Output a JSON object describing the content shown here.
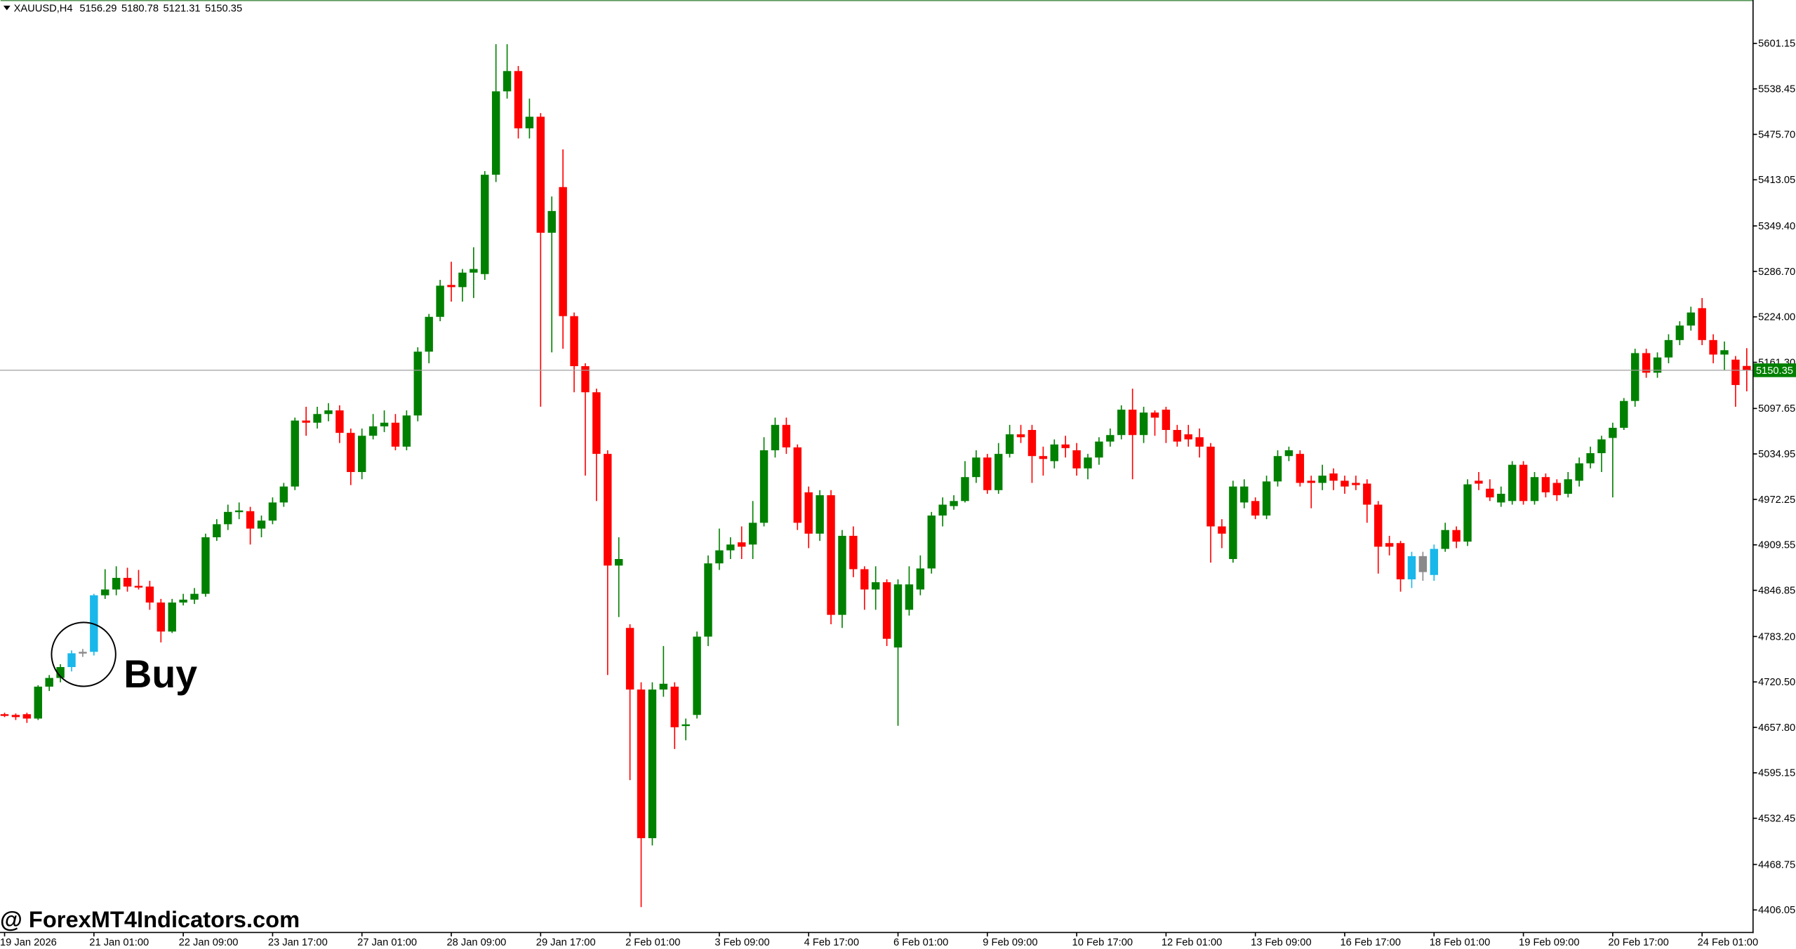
{
  "chart_data": {
    "type": "candlestick",
    "title": "XAUUSD,H4",
    "header_values": [
      5156.29,
      5180.78,
      5121.31,
      5150.35
    ],
    "categories": [
      "19 Jan 2026",
      null,
      null,
      null,
      null,
      null,
      null,
      null,
      "21 Jan 01:00",
      null,
      null,
      null,
      null,
      null,
      null,
      null,
      "22 Jan 09:00",
      null,
      null,
      null,
      null,
      null,
      null,
      null,
      "23 Jan 17:00",
      null,
      null,
      null,
      null,
      null,
      null,
      null,
      "27 Jan 01:00",
      null,
      null,
      null,
      null,
      null,
      null,
      null,
      "28 Jan 09:00",
      null,
      null,
      null,
      null,
      null,
      null,
      null,
      "29 Jan 17:00",
      null,
      null,
      null,
      null,
      null,
      null,
      null,
      "2 Feb 01:00",
      null,
      null,
      null,
      null,
      null,
      null,
      null,
      "3 Feb 09:00",
      null,
      null,
      null,
      null,
      null,
      null,
      null,
      "4 Feb 17:00",
      null,
      null,
      null,
      null,
      null,
      null,
      null,
      "6 Feb 01:00",
      null,
      null,
      null,
      null,
      null,
      null,
      null,
      "9 Feb 09:00",
      null,
      null,
      null,
      null,
      null,
      null,
      null,
      "10 Feb 17:00",
      null,
      null,
      null,
      null,
      null,
      null,
      null,
      "12 Feb 01:00",
      null,
      null,
      null,
      null,
      null,
      null,
      null,
      "13 Feb 09:00",
      null,
      null,
      null,
      null,
      null,
      null,
      null,
      "16 Feb 17:00",
      null,
      null,
      null,
      null,
      null,
      null,
      null,
      "18 Feb 01:00",
      null,
      null,
      null,
      null,
      null,
      null,
      null,
      "19 Feb 09:00",
      null,
      null,
      null,
      null,
      null,
      null,
      null,
      "20 Feb 17:00",
      null,
      null,
      null,
      null,
      null,
      null,
      null,
      "24 Feb 01:00",
      null,
      null,
      null,
      null
    ],
    "open": [
      4676,
      4675,
      4676,
      4670,
      4714,
      4726,
      4741,
      4760,
      4762,
      4840,
      4848,
      4864,
      4853,
      4852,
      4830,
      4790,
      4830,
      4834,
      4842,
      4920,
      4938,
      4955,
      4956,
      4932,
      4943,
      4968,
      4990,
      5081,
      5078,
      5090,
      5095,
      5064,
      5010,
      5060,
      5073,
      5078,
      5045,
      5088,
      5176,
      5224,
      5268,
      5265,
      5285,
      5283,
      5420,
      5535,
      5563,
      5484,
      5500,
      5340,
      5403,
      5225,
      5156,
      5120,
      5035,
      4881,
      4795,
      4710,
      4505,
      4710,
      4714,
      4660,
      4675,
      4783,
      4884,
      4902,
      4913,
      4910,
      4940,
      5040,
      5075,
      5044,
      4982,
      4925,
      4978,
      4813,
      4922,
      4876,
      4848,
      4858,
      4768,
      4820,
      4848,
      4877,
      4950,
      4963,
      4970,
      5003,
      5030,
      4985,
      5035,
      5062,
      5068,
      5032,
      5025,
      5048,
      5040,
      5015,
      5030,
      5052,
      5061,
      5096,
      5061,
      5092,
      5096,
      5068,
      5062,
      5058,
      5045,
      4935,
      4890,
      4968,
      4970,
      4950,
      4997,
      5032,
      5035,
      4998,
      4995,
      5008,
      4998,
      4995,
      4994,
      4965,
      4912,
      4912,
      4862,
      4894,
      4868,
      4904,
      4930,
      4914,
      4998,
      4987,
      4968,
      4970,
      5020,
      4970,
      5003,
      4995,
      4980,
      4998,
      5022,
      5036,
      5057,
      5071,
      5108,
      5174,
      5147,
      5168,
      5192,
      5212,
      5236,
      5192,
      5172,
      5165,
      5156.29
    ],
    "high": [
      4678,
      4677,
      4678,
      4716,
      4730,
      4745,
      4764,
      4766,
      4842,
      4876,
      4880,
      4878,
      4875,
      4860,
      4835,
      4835,
      4842,
      4850,
      4925,
      4945,
      4965,
      4968,
      4962,
      4950,
      4975,
      4995,
      5085,
      5100,
      5100,
      5105,
      5102,
      5070,
      5070,
      5090,
      5095,
      5090,
      5095,
      5182,
      5228,
      5275,
      5300,
      5290,
      5320,
      5425,
      5600,
      5600,
      5570,
      5525,
      5505,
      5390,
      5455,
      5230,
      5160,
      5125,
      5040,
      4920,
      4800,
      4720,
      4720,
      4770,
      4720,
      4670,
      4790,
      4895,
      4932,
      4920,
      4935,
      4970,
      5058,
      5085,
      5085,
      5048,
      4990,
      4985,
      4985,
      4930,
      4935,
      4880,
      4880,
      4862,
      4862,
      4880,
      4895,
      4955,
      4975,
      4978,
      5025,
      5040,
      5035,
      5050,
      5075,
      5075,
      5075,
      5045,
      5055,
      5060,
      5050,
      5035,
      5058,
      5070,
      5102,
      5125,
      5100,
      5095,
      5100,
      5075,
      5075,
      5070,
      5050,
      4945,
      4998,
      5000,
      4975,
      5005,
      5040,
      5045,
      5040,
      5005,
      5020,
      5015,
      5005,
      5005,
      5000,
      4970,
      4922,
      4915,
      4900,
      4900,
      4910,
      4940,
      4935,
      5000,
      5010,
      5000,
      4990,
      5025,
      5025,
      5010,
      5008,
      5000,
      5010,
      5030,
      5045,
      5060,
      5078,
      5112,
      5180,
      5180,
      5175,
      5200,
      5218,
      5238,
      5250,
      5200,
      5190,
      5170,
      5180.78
    ],
    "low": [
      4672,
      4668,
      4664,
      4668,
      4708,
      4720,
      4735,
      4755,
      4757,
      4835,
      4840,
      4845,
      4848,
      4820,
      4775,
      4788,
      4826,
      4828,
      4838,
      4915,
      4930,
      4945,
      4910,
      4920,
      4938,
      4962,
      4985,
      5060,
      5070,
      5080,
      5050,
      4992,
      5000,
      5055,
      5065,
      5040,
      5040,
      5080,
      5160,
      5218,
      5245,
      5245,
      5250,
      5275,
      5410,
      5525,
      5470,
      5470,
      5100,
      5175,
      5180,
      5120,
      5005,
      4970,
      4730,
      4810,
      4585,
      4410,
      4495,
      4700,
      4628,
      4640,
      4670,
      4770,
      4875,
      4890,
      4890,
      4890,
      4935,
      5030,
      5035,
      4930,
      4905,
      4915,
      4800,
      4795,
      4865,
      4820,
      4820,
      4770,
      4660,
      4812,
      4840,
      4870,
      4935,
      4958,
      4968,
      4995,
      4980,
      4980,
      5030,
      5050,
      4995,
      5005,
      5015,
      5030,
      5005,
      5000,
      5020,
      5045,
      5055,
      5000,
      5050,
      5060,
      5050,
      5045,
      5045,
      5030,
      4885,
      4905,
      4885,
      4960,
      4945,
      4945,
      4990,
      5025,
      4990,
      4960,
      4985,
      4985,
      4980,
      4985,
      4940,
      4870,
      4895,
      4845,
      4850,
      4860,
      4860,
      4900,
      4905,
      4908,
      4985,
      4970,
      4962,
      4965,
      4965,
      4965,
      4975,
      4970,
      4975,
      4990,
      5015,
      5010,
      4975,
      5068,
      5100,
      5140,
      5140,
      5160,
      5185,
      5205,
      5185,
      5160,
      5150,
      5100,
      5121.31
    ],
    "close": [
      4674,
      4672,
      4670,
      4714,
      4726,
      4741,
      4760,
      4762,
      4840,
      4848,
      4864,
      4852,
      4851,
      4830,
      4790,
      4830,
      4834,
      4842,
      4920,
      4938,
      4955,
      4957,
      4932,
      4943,
      4968,
      4990,
      5081,
      5078,
      5090,
      5095,
      5064,
      5010,
      5060,
      5073,
      5078,
      5045,
      5088,
      5176,
      5224,
      5267,
      5265,
      5285,
      5290,
      5420,
      5535,
      5563,
      5484,
      5500,
      5340,
      5370,
      5225,
      5156,
      5120,
      5035,
      4881,
      4890,
      4710,
      4505,
      4710,
      4718,
      4658,
      4662,
      4783,
      4884,
      4902,
      4910,
      4907,
      4940,
      5040,
      5075,
      5044,
      4940,
      4925,
      4978,
      4813,
      4922,
      4876,
      4848,
      4858,
      4780,
      4855,
      4855,
      4877,
      4950,
      4965,
      4970,
      5003,
      5030,
      4985,
      5035,
      5062,
      5058,
      5032,
      5028,
      5048,
      5043,
      5015,
      5030,
      5052,
      5061,
      5096,
      5061,
      5092,
      5085,
      5068,
      5052,
      5055,
      5045,
      4935,
      4925,
      4990,
      4990,
      4950,
      4997,
      5032,
      5040,
      4995,
      4995,
      5005,
      4998,
      4990,
      4992,
      4965,
      4907,
      4907,
      4862,
      4894,
      4872,
      4904,
      4930,
      4914,
      4993,
      4994,
      4975,
      4980,
      5020,
      4970,
      5003,
      4982,
      4978,
      5000,
      5022,
      5036,
      5055,
      5071,
      5108,
      5174,
      5147,
      5168,
      5192,
      5212,
      5230,
      5192,
      5172,
      5178,
      5130,
      5150.35
    ],
    "up_color": "#008000",
    "down_color": "#ff0000",
    "signal_color": "#1ab7ea",
    "neutral_color": "#8a8a8a",
    "signal_candles": [
      6,
      8,
      126,
      128
    ],
    "neutral_candles": [
      7,
      127
    ],
    "last_price": 5150.35,
    "ylim": [
      4375,
      5661
    ],
    "yticks": [
      5601.15,
      5538.45,
      {
        "value": 5475.7,
        "label": "5475.70"
      },
      5413.05,
      {
        "value": 5349.4,
        "label": "5349.40"
      },
      {
        "value": 5286.7,
        "label": "5286.70"
      },
      {
        "value": 5224,
        "label": "5224.00"
      },
      {
        "value": 5161.3,
        "label": "5161.30"
      },
      5097.65,
      5034.95,
      4972.25,
      4909.55,
      4846.85,
      {
        "value": 4783.2,
        "label": "4783.20"
      },
      {
        "value": 4720.5,
        "label": "4720.50"
      },
      {
        "value": 4657.8,
        "label": "4657.80"
      },
      4595.15,
      4532.45,
      4468.75,
      4406.05
    ],
    "annotation": "Buy",
    "watermark": "@ ForexMT4Indicators.com"
  }
}
